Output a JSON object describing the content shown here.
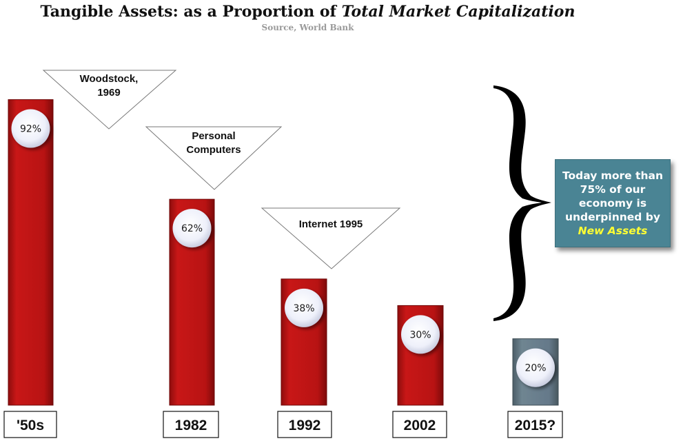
{
  "title": {
    "prefix": "Tangible Assets: as a Proportion of ",
    "emphasis": "Total Market Capitalization"
  },
  "subtitle": "Source, World Bank",
  "chart_data": {
    "type": "bar",
    "categories": [
      "'50s",
      "1982",
      "1992",
      "2002",
      "2015?"
    ],
    "values": [
      92,
      62,
      38,
      30,
      20
    ],
    "data_labels": [
      "92%",
      "62%",
      "38%",
      "30%",
      "20%"
    ],
    "ylim": [
      0,
      100
    ],
    "grid": false,
    "colors": {
      "bar": "#c41414",
      "projected_bar": "#6a808c"
    },
    "annotations": [
      {
        "lines": [
          "Woodstock,",
          "1969"
        ]
      },
      {
        "lines": [
          "Personal",
          "Computers"
        ]
      },
      {
        "lines": [
          "Internet 1995"
        ]
      }
    ]
  },
  "callout": {
    "lines": [
      "Today more than",
      "75% of our",
      "economy is",
      "underpinned by"
    ],
    "highlight": "New Assets",
    "highlight_color": "#ffff33",
    "background": "#4a8494"
  }
}
